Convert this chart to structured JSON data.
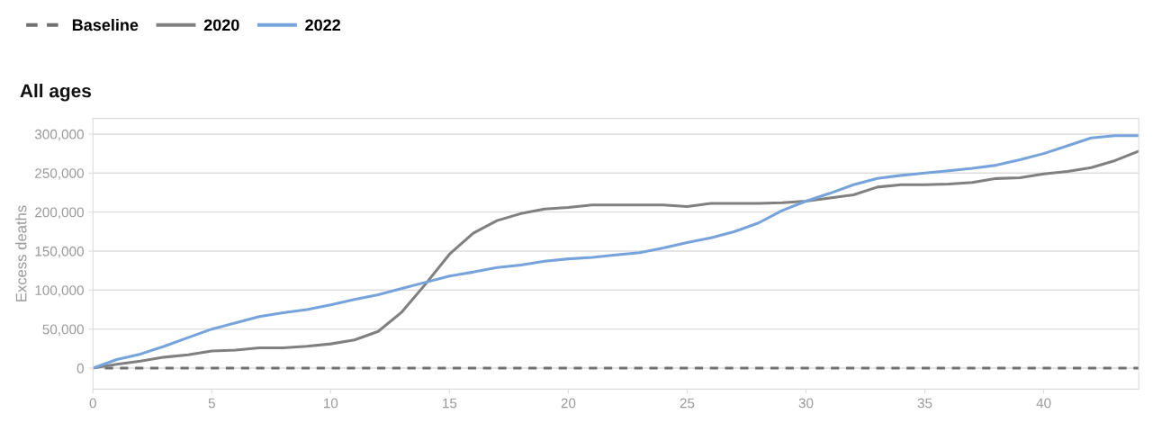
{
  "chart_data": {
    "type": "line",
    "title": "All ages",
    "ylabel": "Excess deaths",
    "xlim": [
      0,
      44
    ],
    "xticks": [
      0,
      5,
      10,
      15,
      20,
      25,
      30,
      35,
      40
    ],
    "ylim": [
      -27000,
      320000
    ],
    "yticks": [
      {
        "value": 0,
        "label": "0"
      },
      {
        "value": 50000,
        "label": "50,000"
      },
      {
        "value": 100000,
        "label": "100,000"
      },
      {
        "value": 150000,
        "label": "150,000"
      },
      {
        "value": 200000,
        "label": "200,000"
      },
      {
        "value": 250000,
        "label": "250,000"
      },
      {
        "value": 300000,
        "label": "300,000"
      }
    ],
    "grid": "y",
    "legend": "top left",
    "series": [
      {
        "name": "Baseline",
        "color": "#707070",
        "line_style": "dashed",
        "x": [
          0.5,
          44
        ],
        "values": [
          0,
          0
        ]
      },
      {
        "name": "2020",
        "color": "#808080",
        "x": [
          0,
          1,
          2,
          3,
          4,
          5,
          6,
          7,
          8,
          9,
          10,
          11,
          12,
          13,
          14,
          15,
          16,
          17,
          18,
          19,
          20,
          21,
          22,
          23,
          24,
          25,
          26,
          27,
          28,
          29,
          30,
          31,
          32,
          33,
          34,
          35,
          36,
          37,
          38,
          39,
          40,
          41,
          42,
          43,
          44
        ],
        "values": [
          0,
          5000,
          9000,
          14000,
          17000,
          22000,
          23000,
          26000,
          26000,
          28000,
          31000,
          36000,
          47000,
          72000,
          108000,
          146000,
          173000,
          189000,
          198000,
          204000,
          206000,
          209000,
          209000,
          209000,
          209000,
          207000,
          211000,
          211000,
          211000,
          212000,
          214000,
          218000,
          222000,
          232000,
          235000,
          235000,
          236000,
          238000,
          243000,
          244000,
          249000,
          252000,
          257000,
          266000,
          278000
        ]
      },
      {
        "name": "2022",
        "color": "#77a3dd",
        "x": [
          0,
          1,
          2,
          3,
          4,
          5,
          6,
          7,
          8,
          9,
          10,
          11,
          12,
          13,
          14,
          15,
          16,
          17,
          18,
          19,
          20,
          21,
          22,
          23,
          24,
          25,
          26,
          27,
          28,
          29,
          30,
          31,
          32,
          33,
          34,
          35,
          36,
          37,
          38,
          39,
          40,
          41,
          42,
          43,
          44
        ],
        "values": [
          0,
          11000,
          18000,
          28000,
          39000,
          50000,
          58000,
          66000,
          71000,
          75000,
          81000,
          88000,
          94000,
          102000,
          110000,
          118000,
          123000,
          129000,
          132000,
          137000,
          140000,
          142000,
          145000,
          148000,
          154000,
          161000,
          167000,
          175000,
          186000,
          202000,
          214000,
          224000,
          235000,
          243000,
          247000,
          250000,
          253000,
          256000,
          260000,
          267000,
          275000,
          285000,
          295000,
          298000,
          298000
        ]
      }
    ]
  }
}
